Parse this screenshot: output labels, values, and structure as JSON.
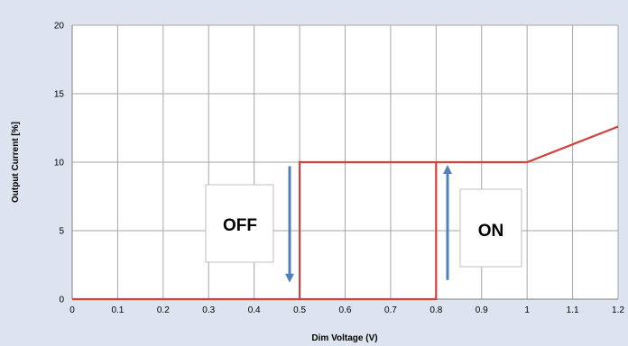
{
  "chart_data": {
    "type": "line",
    "title": "",
    "xlabel": "Dim Voltage (V)",
    "ylabel": "Output Current [%]",
    "xlim": [
      0,
      1.2
    ],
    "ylim": [
      0,
      20
    ],
    "xticks": [
      "0",
      "0.1",
      "0.2",
      "0.3",
      "0.4",
      "0.5",
      "0.6",
      "0.7",
      "0.8",
      "0.9",
      "1",
      "1.1",
      "1.2"
    ],
    "yticks": [
      "0",
      "5",
      "10",
      "15",
      "20"
    ],
    "grid": true,
    "series": [
      {
        "color": "#d0413e",
        "points": [
          [
            0,
            0
          ],
          [
            0.5,
            0
          ],
          [
            0.5,
            10
          ],
          [
            0.8,
            10
          ],
          [
            0.8,
            0
          ],
          [
            0.5,
            0
          ],
          [
            0.5,
            10
          ],
          [
            1.0,
            10
          ],
          [
            1.2,
            12.6
          ]
        ]
      }
    ],
    "annotations": [
      {
        "text": "OFF",
        "arrow": "down",
        "at_x": 0.48,
        "arrow_from": 9.7,
        "arrow_to": 1.2
      },
      {
        "text": "ON",
        "arrow": "up",
        "at_x": 0.83,
        "arrow_from": 1.4,
        "arrow_to": 9.8
      }
    ],
    "colors": {
      "background": "#dde4ef",
      "plot": "#ffffff",
      "grid": "#a6a6a6",
      "line": "#d0413e",
      "arrow": "#4f81bd"
    }
  }
}
